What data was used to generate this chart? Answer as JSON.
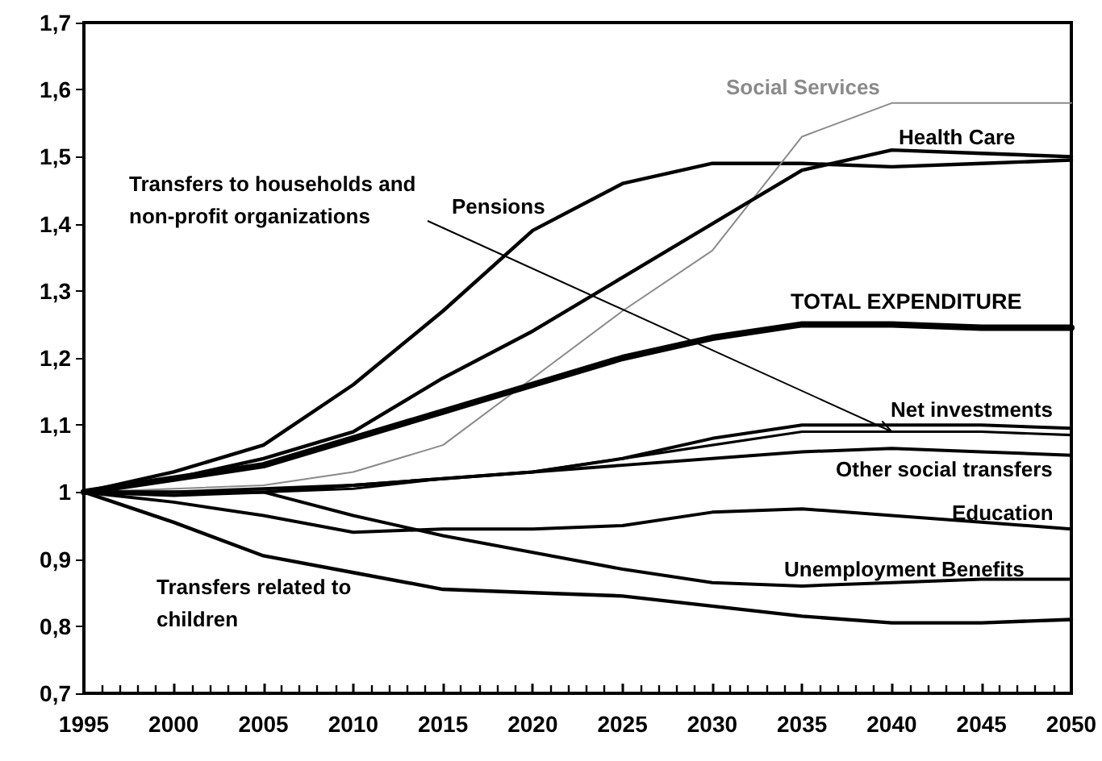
{
  "chart_data": {
    "type": "line",
    "x": [
      1995,
      2000,
      2005,
      2010,
      2015,
      2020,
      2025,
      2030,
      2035,
      2040,
      2045,
      2050
    ],
    "xlim": [
      1995,
      2050
    ],
    "xticks": [
      1995,
      2000,
      2005,
      2010,
      2015,
      2020,
      2025,
      2030,
      2035,
      2040,
      2045,
      2050
    ],
    "ylim": [
      0.7,
      1.7
    ],
    "yticks": [
      {
        "value": 0.7,
        "label": "0,7"
      },
      {
        "value": 0.8,
        "label": "0,8"
      },
      {
        "value": 0.9,
        "label": "0,9"
      },
      {
        "value": 1,
        "label": "1"
      },
      {
        "value": 1.1,
        "label": "1,1"
      },
      {
        "value": 1.2,
        "label": "1,2"
      },
      {
        "value": 1.3,
        "label": "1,3"
      },
      {
        "value": 1.4,
        "label": "1,4"
      },
      {
        "value": 1.5,
        "label": "1,5"
      },
      {
        "value": 1.6,
        "label": "1,6"
      },
      {
        "value": 1.7,
        "label": "1,7"
      }
    ],
    "grid": false,
    "legend": false,
    "marker": "none",
    "line_style": "solid",
    "series": [
      {
        "name": "Pensions",
        "color": "#000000",
        "values": [
          1.0,
          1.03,
          1.07,
          1.16,
          1.27,
          1.39,
          1.46,
          1.49,
          1.49,
          1.485,
          1.49,
          1.495
        ]
      },
      {
        "name": "Social Services",
        "color": "#8a8a8a",
        "values": [
          1.0,
          1.005,
          1.01,
          1.03,
          1.07,
          1.17,
          1.27,
          1.36,
          1.53,
          1.58,
          1.58,
          1.58
        ]
      },
      {
        "name": "Health Care",
        "color": "#000000",
        "values": [
          1.0,
          1.02,
          1.05,
          1.09,
          1.17,
          1.24,
          1.32,
          1.4,
          1.48,
          1.51,
          1.505,
          1.5
        ]
      },
      {
        "name": "Transfers to households and non-profit organizations",
        "color": "#000000",
        "values": [
          1.0,
          1.0,
          1.0,
          1.005,
          1.02,
          1.03,
          1.05,
          1.07,
          1.09,
          1.09,
          1.09,
          1.085
        ]
      },
      {
        "name": "TOTAL EXPENDITURE",
        "color": "#000000",
        "values": [
          1.0,
          1.02,
          1.04,
          1.08,
          1.12,
          1.16,
          1.2,
          1.23,
          1.25,
          1.25,
          1.245,
          1.245
        ]
      },
      {
        "name": "Net investments",
        "color": "#000000",
        "values": [
          1.0,
          1.0,
          1.005,
          1.01,
          1.02,
          1.03,
          1.05,
          1.08,
          1.1,
          1.1,
          1.1,
          1.095
        ]
      },
      {
        "name": "Other social transfers",
        "color": "#000000",
        "values": [
          1.0,
          1.0,
          1.0,
          1.01,
          1.02,
          1.03,
          1.04,
          1.05,
          1.06,
          1.065,
          1.06,
          1.055
        ]
      },
      {
        "name": "Education",
        "color": "#000000",
        "values": [
          1.0,
          0.985,
          0.965,
          0.94,
          0.945,
          0.945,
          0.95,
          0.97,
          0.975,
          0.965,
          0.955,
          0.945
        ]
      },
      {
        "name": "Unemployment Benefits",
        "color": "#000000",
        "values": [
          1.0,
          0.995,
          1.0,
          0.965,
          0.935,
          0.91,
          0.885,
          0.865,
          0.86,
          0.865,
          0.87,
          0.87
        ]
      },
      {
        "name": "Transfers related to children",
        "color": "#000000",
        "values": [
          1.0,
          0.955,
          0.905,
          0.88,
          0.855,
          0.85,
          0.845,
          0.83,
          0.815,
          0.805,
          0.805,
          0.81
        ]
      }
    ]
  }
}
